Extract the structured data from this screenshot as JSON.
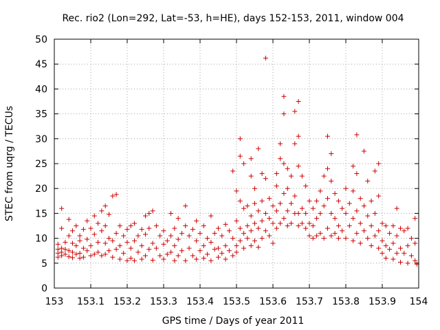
{
  "chart_data": {
    "type": "scatter",
    "title": "Rec. rio2 (Lon=292, Lat=-53, h=HE), days 152-153, 2011, window 004",
    "xlabel": "GPS time / Days of year 2011",
    "ylabel": "STEC from uqrg / TECUs",
    "xlim": [
      153,
      154
    ],
    "ylim": [
      0,
      50
    ],
    "xticks": [
      "153",
      "153.1",
      "153.2",
      "153.3",
      "153.4",
      "153.5",
      "153.6",
      "153.7",
      "153.8",
      "153.9",
      "154"
    ],
    "yticks": [
      "0",
      "5",
      "10",
      "15",
      "20",
      "25",
      "30",
      "35",
      "40",
      "45",
      "50"
    ],
    "grid": true,
    "marker": "plus",
    "color": "#cc0000",
    "series": [
      {
        "points": [
          [
            153.01,
            8.8
          ],
          [
            153.01,
            7.8
          ],
          [
            153.01,
            7.0
          ],
          [
            153.01,
            6.2
          ],
          [
            153.02,
            8.0
          ],
          [
            153.02,
            7.2
          ],
          [
            153.02,
            6.5
          ],
          [
            153.02,
            16.0
          ],
          [
            153.02,
            12.0
          ],
          [
            153.03,
            9.2
          ],
          [
            153.03,
            7.8
          ],
          [
            153.03,
            6.8
          ],
          [
            153.04,
            13.8
          ],
          [
            153.04,
            10.5
          ],
          [
            153.04,
            7.5
          ],
          [
            153.04,
            6.3
          ],
          [
            153.05,
            11.5
          ],
          [
            153.05,
            9.0
          ],
          [
            153.05,
            7.2
          ],
          [
            153.05,
            6.1
          ],
          [
            153.06,
            12.5
          ],
          [
            153.06,
            8.5
          ],
          [
            153.06,
            6.8
          ],
          [
            153.07,
            10.5
          ],
          [
            153.07,
            9.5
          ],
          [
            153.07,
            7.0
          ],
          [
            153.07,
            6.0
          ],
          [
            153.08,
            11.8
          ],
          [
            153.08,
            8.0
          ],
          [
            153.08,
            6.2
          ],
          [
            153.09,
            13.5
          ],
          [
            153.09,
            9.8
          ],
          [
            153.09,
            7.5
          ],
          [
            153.1,
            12.0
          ],
          [
            153.1,
            8.5
          ],
          [
            153.1,
            6.5
          ],
          [
            153.11,
            14.5
          ],
          [
            153.11,
            10.8
          ],
          [
            153.11,
            6.8
          ],
          [
            153.12,
            13.0
          ],
          [
            153.12,
            9.2
          ],
          [
            153.12,
            7.2
          ],
          [
            153.13,
            15.5
          ],
          [
            153.13,
            11.5
          ],
          [
            153.13,
            6.5
          ],
          [
            153.14,
            16.5
          ],
          [
            153.14,
            12.5
          ],
          [
            153.14,
            9.0
          ],
          [
            153.14,
            6.8
          ],
          [
            153.15,
            14.8
          ],
          [
            153.15,
            10.0
          ],
          [
            153.15,
            7.5
          ],
          [
            153.16,
            18.5
          ],
          [
            153.16,
            9.5
          ],
          [
            153.16,
            6.2
          ],
          [
            153.17,
            18.8
          ],
          [
            153.17,
            11.0
          ],
          [
            153.17,
            7.8
          ],
          [
            153.18,
            12.5
          ],
          [
            153.18,
            8.5
          ],
          [
            153.18,
            5.8
          ],
          [
            153.19,
            10.5
          ],
          [
            153.19,
            7.0
          ],
          [
            153.2,
            11.8
          ],
          [
            153.2,
            9.2
          ],
          [
            153.2,
            5.5
          ],
          [
            153.21,
            12.5
          ],
          [
            153.21,
            8.0
          ],
          [
            153.21,
            6.0
          ],
          [
            153.22,
            13.0
          ],
          [
            153.22,
            9.5
          ],
          [
            153.22,
            5.5
          ],
          [
            153.23,
            10.5
          ],
          [
            153.23,
            7.2
          ],
          [
            153.24,
            11.8
          ],
          [
            153.24,
            8.5
          ],
          [
            153.24,
            5.8
          ],
          [
            153.25,
            14.5
          ],
          [
            153.25,
            10.8
          ],
          [
            153.25,
            6.5
          ],
          [
            153.26,
            15.0
          ],
          [
            153.26,
            12.0
          ],
          [
            153.26,
            7.8
          ],
          [
            153.27,
            15.5
          ],
          [
            153.27,
            9.0
          ],
          [
            153.27,
            5.6
          ],
          [
            153.28,
            12.5
          ],
          [
            153.28,
            8.0
          ],
          [
            153.29,
            10.5
          ],
          [
            153.29,
            6.5
          ],
          [
            153.3,
            11.5
          ],
          [
            153.3,
            8.8
          ],
          [
            153.3,
            5.8
          ],
          [
            153.31,
            9.5
          ],
          [
            153.31,
            6.8
          ],
          [
            153.32,
            15.0
          ],
          [
            153.32,
            10.5
          ],
          [
            153.32,
            7.2
          ],
          [
            153.33,
            12.0
          ],
          [
            153.33,
            8.5
          ],
          [
            153.33,
            5.5
          ],
          [
            153.34,
            14.0
          ],
          [
            153.34,
            9.8
          ],
          [
            153.34,
            6.5
          ],
          [
            153.35,
            11.0
          ],
          [
            153.35,
            7.5
          ],
          [
            153.36,
            16.5
          ],
          [
            153.36,
            12.5
          ],
          [
            153.36,
            5.5
          ],
          [
            153.37,
            10.5
          ],
          [
            153.37,
            8.0
          ],
          [
            153.38,
            11.8
          ],
          [
            153.38,
            6.5
          ],
          [
            153.39,
            13.5
          ],
          [
            153.39,
            9.5
          ],
          [
            153.39,
            5.8
          ],
          [
            153.4,
            11.0
          ],
          [
            153.4,
            7.5
          ],
          [
            153.41,
            12.5
          ],
          [
            153.41,
            8.5
          ],
          [
            153.41,
            6.0
          ],
          [
            153.42,
            10.0
          ],
          [
            153.42,
            6.8
          ],
          [
            153.43,
            14.5
          ],
          [
            153.43,
            9.2
          ],
          [
            153.43,
            5.5
          ],
          [
            153.44,
            11.0
          ],
          [
            153.44,
            7.8
          ],
          [
            153.45,
            12.0
          ],
          [
            153.45,
            8.0
          ],
          [
            153.45,
            6.2
          ],
          [
            153.46,
            10.5
          ],
          [
            153.46,
            7.0
          ],
          [
            153.47,
            12.8
          ],
          [
            153.47,
            8.5
          ],
          [
            153.47,
            5.8
          ],
          [
            153.48,
            11.5
          ],
          [
            153.48,
            7.5
          ],
          [
            153.49,
            23.5
          ],
          [
            153.49,
            10.0
          ],
          [
            153.49,
            6.5
          ],
          [
            153.5,
            19.5
          ],
          [
            153.5,
            13.5
          ],
          [
            153.5,
            8.5
          ],
          [
            153.5,
            7.2
          ],
          [
            153.51,
            30.0
          ],
          [
            153.51,
            26.5
          ],
          [
            153.51,
            17.5
          ],
          [
            153.51,
            12.0
          ],
          [
            153.51,
            9.5
          ],
          [
            153.52,
            25.0
          ],
          [
            153.52,
            16.0
          ],
          [
            153.52,
            11.0
          ],
          [
            153.52,
            8.0
          ],
          [
            153.53,
            16.5
          ],
          [
            153.53,
            12.5
          ],
          [
            153.53,
            10.0
          ],
          [
            153.54,
            26.0
          ],
          [
            153.54,
            22.5
          ],
          [
            153.54,
            14.5
          ],
          [
            153.54,
            11.5
          ],
          [
            153.54,
            8.5
          ],
          [
            153.55,
            20.0
          ],
          [
            153.55,
            17.0
          ],
          [
            153.55,
            13.0
          ],
          [
            153.55,
            9.5
          ],
          [
            153.56,
            28.0
          ],
          [
            153.56,
            15.5
          ],
          [
            153.56,
            12.0
          ],
          [
            153.56,
            8.2
          ],
          [
            153.57,
            23.0
          ],
          [
            153.57,
            17.5
          ],
          [
            153.57,
            13.5
          ],
          [
            153.57,
            10.0
          ],
          [
            153.58,
            46.2
          ],
          [
            153.58,
            22.0
          ],
          [
            153.58,
            15.0
          ],
          [
            153.58,
            11.5
          ],
          [
            153.59,
            18.0
          ],
          [
            153.59,
            14.0
          ],
          [
            153.59,
            10.5
          ],
          [
            153.6,
            16.5
          ],
          [
            153.6,
            13.0
          ],
          [
            153.6,
            9.0
          ],
          [
            153.61,
            23.0
          ],
          [
            153.61,
            20.5
          ],
          [
            153.61,
            15.5
          ],
          [
            153.61,
            12.0
          ],
          [
            153.62,
            29.0
          ],
          [
            153.62,
            26.0
          ],
          [
            153.62,
            17.0
          ],
          [
            153.62,
            13.0
          ],
          [
            153.63,
            38.5
          ],
          [
            153.63,
            35.0
          ],
          [
            153.63,
            25.0
          ],
          [
            153.63,
            19.0
          ],
          [
            153.63,
            14.0
          ],
          [
            153.64,
            24.0
          ],
          [
            153.64,
            20.0
          ],
          [
            153.64,
            15.5
          ],
          [
            153.64,
            12.5
          ],
          [
            153.65,
            22.5
          ],
          [
            153.65,
            17.0
          ],
          [
            153.65,
            13.0
          ],
          [
            153.66,
            35.5
          ],
          [
            153.66,
            29.0
          ],
          [
            153.66,
            18.5
          ],
          [
            153.66,
            15.0
          ],
          [
            153.67,
            37.5
          ],
          [
            153.67,
            30.5
          ],
          [
            153.67,
            24.5
          ],
          [
            153.67,
            15.0
          ],
          [
            153.67,
            12.5
          ],
          [
            153.68,
            22.5
          ],
          [
            153.68,
            16.0
          ],
          [
            153.68,
            13.0
          ],
          [
            153.69,
            20.5
          ],
          [
            153.69,
            15.0
          ],
          [
            153.69,
            12.0
          ],
          [
            153.7,
            17.5
          ],
          [
            153.7,
            13.0
          ],
          [
            153.7,
            10.5
          ],
          [
            153.71,
            16.0
          ],
          [
            153.71,
            12.5
          ],
          [
            153.71,
            10.0
          ],
          [
            153.72,
            17.5
          ],
          [
            153.72,
            14.0
          ],
          [
            153.72,
            10.5
          ],
          [
            153.73,
            19.5
          ],
          [
            153.73,
            15.0
          ],
          [
            153.73,
            11.0
          ],
          [
            153.74,
            22.5
          ],
          [
            153.74,
            16.5
          ],
          [
            153.74,
            10.0
          ],
          [
            153.75,
            30.5
          ],
          [
            153.75,
            24.0
          ],
          [
            153.75,
            18.0
          ],
          [
            153.75,
            12.0
          ],
          [
            153.76,
            27.0
          ],
          [
            153.76,
            21.5
          ],
          [
            153.76,
            15.0
          ],
          [
            153.76,
            10.5
          ],
          [
            153.77,
            19.0
          ],
          [
            153.77,
            14.0
          ],
          [
            153.77,
            11.0
          ],
          [
            153.78,
            17.5
          ],
          [
            153.78,
            12.5
          ],
          [
            153.78,
            10.0
          ],
          [
            153.79,
            16.0
          ],
          [
            153.79,
            11.5
          ],
          [
            153.8,
            20.0
          ],
          [
            153.8,
            15.0
          ],
          [
            153.8,
            10.0
          ],
          [
            153.81,
            17.0
          ],
          [
            153.81,
            12.5
          ],
          [
            153.82,
            24.5
          ],
          [
            153.82,
            19.5
          ],
          [
            153.82,
            14.0
          ],
          [
            153.82,
            9.5
          ],
          [
            153.83,
            30.8
          ],
          [
            153.83,
            23.0
          ],
          [
            153.83,
            15.5
          ],
          [
            153.83,
            11.0
          ],
          [
            153.84,
            18.0
          ],
          [
            153.84,
            13.0
          ],
          [
            153.84,
            9.0
          ],
          [
            153.85,
            27.5
          ],
          [
            153.85,
            16.5
          ],
          [
            153.85,
            11.5
          ],
          [
            153.86,
            21.5
          ],
          [
            153.86,
            14.5
          ],
          [
            153.86,
            10.0
          ],
          [
            153.87,
            17.5
          ],
          [
            153.87,
            12.5
          ],
          [
            153.87,
            8.5
          ],
          [
            153.88,
            23.5
          ],
          [
            153.88,
            15.0
          ],
          [
            153.88,
            10.5
          ],
          [
            153.89,
            25.0
          ],
          [
            153.89,
            18.5
          ],
          [
            153.89,
            11.5
          ],
          [
            153.89,
            8.0
          ],
          [
            153.9,
            13.0
          ],
          [
            153.9,
            9.5
          ],
          [
            153.9,
            7.0
          ],
          [
            153.91,
            12.5
          ],
          [
            153.91,
            8.5
          ],
          [
            153.91,
            6.0
          ],
          [
            153.92,
            11.0
          ],
          [
            153.92,
            7.8
          ],
          [
            153.93,
            12.5
          ],
          [
            153.93,
            9.0
          ],
          [
            153.93,
            5.8
          ],
          [
            153.94,
            16.0
          ],
          [
            153.94,
            10.5
          ],
          [
            153.94,
            7.0
          ],
          [
            153.95,
            12.0
          ],
          [
            153.95,
            8.0
          ],
          [
            153.95,
            5.2
          ],
          [
            153.96,
            11.5
          ],
          [
            153.96,
            7.0
          ],
          [
            153.97,
            12.0
          ],
          [
            153.97,
            8.5
          ],
          [
            153.97,
            5.0
          ],
          [
            153.98,
            10.0
          ],
          [
            153.98,
            6.5
          ],
          [
            153.99,
            14.0
          ],
          [
            153.99,
            9.0
          ],
          [
            153.99,
            5.5
          ],
          [
            153.995,
            4.8
          ]
        ]
      }
    ]
  }
}
